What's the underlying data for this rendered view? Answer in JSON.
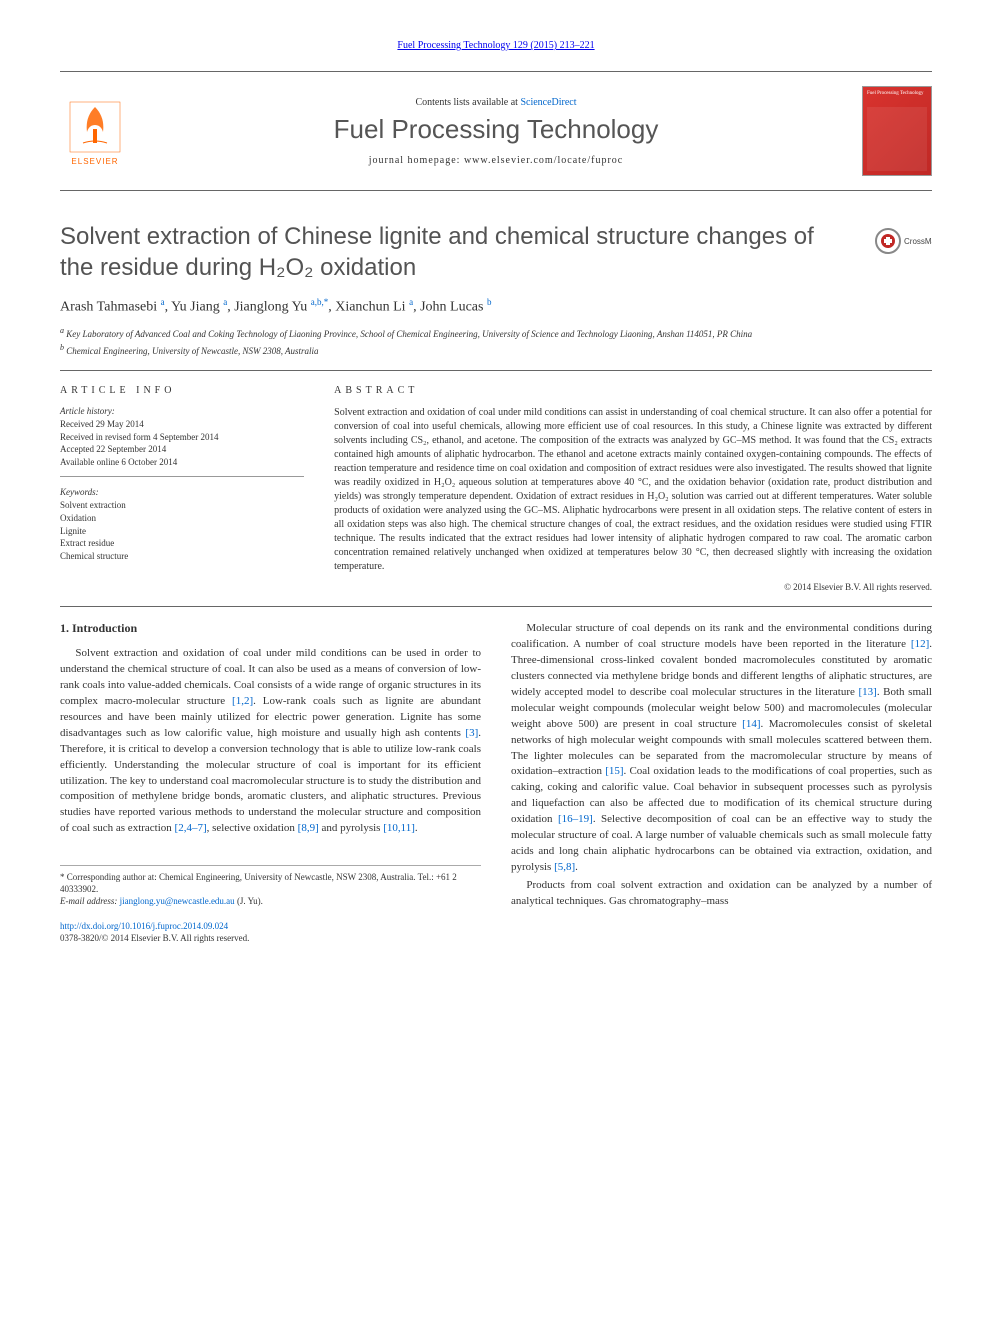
{
  "top_link": "Fuel Processing Technology 129 (2015) 213–221",
  "header": {
    "contents_prefix": "Contents lists available at ",
    "contents_link": "ScienceDirect",
    "journal_name": "Fuel Processing Technology",
    "homepage_prefix": "journal homepage: ",
    "homepage": "www.elsevier.com/locate/fuproc",
    "publisher": "ELSEVIER",
    "cover_title": "Fuel Processing Technology"
  },
  "title": "Solvent extraction of Chinese lignite and chemical structure changes of the residue during H₂O₂ oxidation",
  "crossmark_label": "CrossMark",
  "authors_html": "Arash Tahmasebi <sup>a</sup>, Yu Jiang <sup>a</sup>, Jianglong Yu <sup>a,b,*</sup>, Xianchun Li <sup>a</sup>, John Lucas <sup>b</sup>",
  "affiliations": [
    {
      "sup": "a",
      "text": "Key Laboratory of Advanced Coal and Coking Technology of Liaoning Province, School of Chemical Engineering, University of Science and Technology Liaoning, Anshan 114051, PR China"
    },
    {
      "sup": "b",
      "text": "Chemical Engineering, University of Newcastle, NSW 2308, Australia"
    }
  ],
  "article_info_head": "ARTICLE INFO",
  "abstract_head": "ABSTRACT",
  "history": {
    "label": "Article history:",
    "lines": [
      "Received 29 May 2014",
      "Received in revised form 4 September 2014",
      "Accepted 22 September 2014",
      "Available online 6 October 2014"
    ]
  },
  "keywords": {
    "label": "Keywords:",
    "items": [
      "Solvent extraction",
      "Oxidation",
      "Lignite",
      "Extract residue",
      "Chemical structure"
    ]
  },
  "abstract": "Solvent extraction and oxidation of coal under mild conditions can assist in understanding of coal chemical structure. It can also offer a potential for conversion of coal into useful chemicals, allowing more efficient use of coal resources. In this study, a Chinese lignite was extracted by different solvents including CS₂, ethanol, and acetone. The composition of the extracts was analyzed by GC–MS method. It was found that the CS₂ extracts contained high amounts of aliphatic hydrocarbon. The ethanol and acetone extracts mainly contained oxygen-containing compounds. The effects of reaction temperature and residence time on coal oxidation and composition of extract residues were also investigated. The results showed that lignite was readily oxidized in H₂O₂ aqueous solution at temperatures above 40 °C, and the oxidation behavior (oxidation rate, product distribution and yields) was strongly temperature dependent. Oxidation of extract residues in H₂O₂ solution was carried out at different temperatures. Water soluble products of oxidation were analyzed using the GC–MS. Aliphatic hydrocarbons were present in all oxidation steps. The relative content of esters in all oxidation steps was also high. The chemical structure changes of coal, the extract residues, and the oxidation residues were studied using FTIR technique. The results indicated that the extract residues had lower intensity of aliphatic hydrogen compared to raw coal. The aromatic carbon concentration remained relatively unchanged when oxidized at temperatures below 30 °C, then decreased slightly with increasing the oxidation temperature.",
  "copyright": "© 2014 Elsevier B.V. All rights reserved.",
  "intro_head": "1. Introduction",
  "body": {
    "left": [
      "Solvent extraction and oxidation of coal under mild conditions can be used in order to understand the chemical structure of coal. It can also be used as a means of conversion of low-rank coals into value-added chemicals. Coal consists of a wide range of organic structures in its complex macro-molecular structure <a href='#' data-name='ref-link' data-interactable='true'>[1,2]</a>. Low-rank coals such as lignite are abundant resources and have been mainly utilized for electric power generation. Lignite has some disadvantages such as low calorific value, high moisture and usually high ash contents <a href='#' data-name='ref-link' data-interactable='true'>[3]</a>. Therefore, it is critical to develop a conversion technology that is able to utilize low-rank coals efficiently. Understanding the molecular structure of coal is important for its efficient utilization. The key to understand coal macromolecular structure is to study the distribution and composition of methylene bridge bonds, aromatic clusters, and aliphatic structures. Previous studies have reported various methods to understand the molecular structure and composition of coal such as extraction <a href='#' data-name='ref-link' data-interactable='true'>[2,4–7]</a>, selective oxidation <a href='#' data-name='ref-link' data-interactable='true'>[8,9]</a> and pyrolysis <a href='#' data-name='ref-link' data-interactable='true'>[10,11]</a>."
    ],
    "right": [
      "Molecular structure of coal depends on its rank and the environmental conditions during coalification. A number of coal structure models have been reported in the literature <a href='#' data-name='ref-link' data-interactable='true'>[12]</a>. Three-dimensional cross-linked covalent bonded macromolecules constituted by aromatic clusters connected via methylene bridge bonds and different lengths of aliphatic structures, are widely accepted model to describe coal molecular structures in the literature <a href='#' data-name='ref-link' data-interactable='true'>[13]</a>. Both small molecular weight compounds (molecular weight below 500) and macromolecules (molecular weight above 500) are present in coal structure <a href='#' data-name='ref-link' data-interactable='true'>[14]</a>. Macromolecules consist of skeletal networks of high molecular weight compounds with small molecules scattered between them. The lighter molecules can be separated from the macromolecular structure by means of oxidation–extraction <a href='#' data-name='ref-link' data-interactable='true'>[15]</a>. Coal oxidation leads to the modifications of coal properties, such as caking, coking and calorific value. Coal behavior in subsequent processes such as pyrolysis and liquefaction can also be affected due to modification of its chemical structure during oxidation <a href='#' data-name='ref-link' data-interactable='true'>[16–19]</a>. Selective decomposition of coal can be an effective way to study the molecular structure of coal. A large number of valuable chemicals such as small molecule fatty acids and long chain aliphatic hydrocarbons can be obtained via extraction, oxidation, and pyrolysis <a href='#' data-name='ref-link' data-interactable='true'>[5,8]</a>.",
      "Products from coal solvent extraction and oxidation can be analyzed by a number of analytical techniques. Gas chromatography–mass"
    ]
  },
  "footnote": {
    "label": "* Corresponding author at: ",
    "addr": "Chemical Engineering, University of Newcastle, NSW 2308, Australia. Tel.: +61 2 40333902.",
    "email_label": "E-mail address: ",
    "email": "jianglong.yu@newcastle.edu.au",
    "email_suffix": " (J. Yu)."
  },
  "footer": {
    "doi": "http://dx.doi.org/10.1016/j.fuproc.2014.09.024",
    "issn": "0378-3820/© 2014 Elsevier B.V. All rights reserved."
  },
  "colors": {
    "link": "#0066cc",
    "elsevier_orange": "#ff6600",
    "cover_red": "#d9332e",
    "text": "#333333",
    "title_gray": "#535353"
  }
}
